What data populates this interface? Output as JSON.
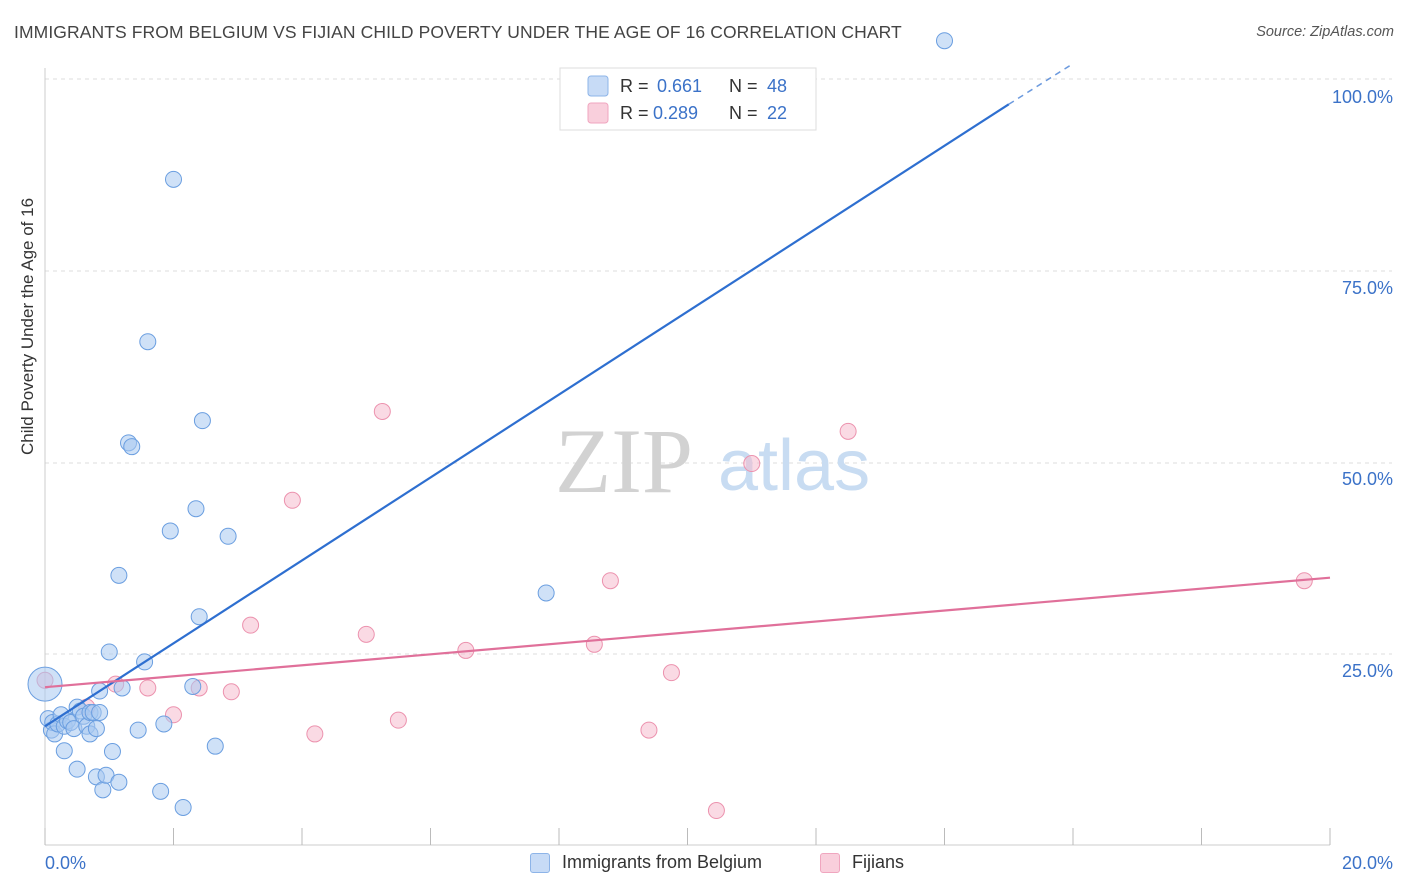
{
  "title": "IMMIGRANTS FROM BELGIUM VS FIJIAN CHILD POVERTY UNDER THE AGE OF 16 CORRELATION CHART",
  "source": "Source: ZipAtlas.com",
  "watermark": {
    "zip": "ZIP",
    "atlas": "atlas"
  },
  "colors": {
    "blue_fill": "#a8c8f0",
    "blue_stroke": "#6a9ee0",
    "blue_line": "#2e6fd0",
    "pink_fill": "#f6bccd",
    "pink_stroke": "#ec92ae",
    "pink_line": "#e0709a",
    "axis_label": "#3b72c8",
    "grid": "#dddddd"
  },
  "legend": {
    "r_label": "R =",
    "n_label": "N =",
    "rows": [
      {
        "r": "0.661",
        "n": "48",
        "series": "blue"
      },
      {
        "r": "0.289",
        "n": "22",
        "series": "pink"
      }
    ]
  },
  "chart_data": {
    "type": "scatter",
    "title": "IMMIGRANTS FROM BELGIUM VS FIJIAN CHILD POVERTY UNDER THE AGE OF 16 CORRELATION CHART",
    "xlabel": "",
    "ylabel": "Child Poverty Under the Age of 16",
    "xlim": [
      0,
      20
    ],
    "ylim": [
      0,
      100
    ],
    "x_tick_labels": [
      "0.0%",
      "20.0%"
    ],
    "y_tick_labels": [
      "100.0%",
      "75.0%",
      "50.0%",
      "25.0%"
    ],
    "y_ticks": [
      100,
      75,
      50,
      25
    ],
    "series": [
      {
        "name": "Immigrants from Belgium",
        "color": "blue",
        "r": 0.661,
        "n": 48,
        "trend": {
          "x": [
            0,
            15.0
          ],
          "y": [
            15.5,
            96.7
          ],
          "dash_to": [
            16.0,
            102.0
          ]
        },
        "points": [
          [
            0.05,
            16.5
          ],
          [
            0.1,
            15.0
          ],
          [
            0.12,
            16.0
          ],
          [
            0.15,
            14.5
          ],
          [
            0.2,
            15.8
          ],
          [
            0.25,
            17.0
          ],
          [
            0.3,
            15.5
          ],
          [
            0.3,
            12.3
          ],
          [
            0.35,
            16.2
          ],
          [
            0.4,
            16.0
          ],
          [
            0.45,
            15.2
          ],
          [
            0.5,
            18.0
          ],
          [
            0.5,
            9.9
          ],
          [
            0.55,
            17.5
          ],
          [
            0.6,
            16.8
          ],
          [
            0.65,
            15.5
          ],
          [
            0.7,
            17.3
          ],
          [
            0.7,
            14.5
          ],
          [
            0.75,
            17.3
          ],
          [
            0.8,
            15.2
          ],
          [
            0.8,
            8.9
          ],
          [
            0.85,
            17.3
          ],
          [
            0.85,
            20.1
          ],
          [
            0.9,
            7.2
          ],
          [
            0.95,
            9.1
          ],
          [
            1.0,
            25.2
          ],
          [
            1.05,
            12.2
          ],
          [
            1.15,
            8.2
          ],
          [
            1.15,
            35.2
          ],
          [
            1.2,
            20.5
          ],
          [
            1.3,
            52.5
          ],
          [
            1.35,
            52.0
          ],
          [
            1.45,
            15.0
          ],
          [
            1.55,
            23.9
          ],
          [
            1.6,
            65.7
          ],
          [
            1.8,
            7.0
          ],
          [
            1.85,
            15.8
          ],
          [
            1.95,
            41.0
          ],
          [
            2.0,
            86.9
          ],
          [
            2.15,
            4.9
          ],
          [
            2.3,
            20.7
          ],
          [
            2.35,
            43.9
          ],
          [
            2.4,
            29.8
          ],
          [
            2.45,
            55.4
          ],
          [
            2.65,
            12.9
          ],
          [
            2.85,
            40.3
          ],
          [
            7.8,
            32.9
          ],
          [
            14.0,
            105.0
          ]
        ],
        "big_point": [
          0.0,
          21.0
        ]
      },
      {
        "name": "Fijians",
        "color": "pink",
        "r": 0.289,
        "n": 22,
        "trend": {
          "x": [
            0,
            20
          ],
          "y": [
            20.6,
            34.9
          ]
        },
        "points": [
          [
            0.0,
            21.5
          ],
          [
            0.65,
            18.0
          ],
          [
            1.1,
            21.0
          ],
          [
            1.6,
            20.5
          ],
          [
            2.0,
            17.0
          ],
          [
            2.4,
            20.5
          ],
          [
            2.9,
            20.0
          ],
          [
            3.2,
            28.7
          ],
          [
            3.85,
            45.0
          ],
          [
            4.2,
            14.5
          ],
          [
            5.0,
            27.5
          ],
          [
            5.25,
            56.6
          ],
          [
            5.5,
            16.3
          ],
          [
            6.55,
            25.4
          ],
          [
            8.55,
            26.2
          ],
          [
            8.8,
            34.5
          ],
          [
            9.4,
            15.0
          ],
          [
            9.75,
            22.5
          ],
          [
            10.45,
            4.5
          ],
          [
            11.0,
            49.8
          ],
          [
            12.5,
            54.0
          ],
          [
            19.6,
            34.5
          ]
        ]
      }
    ]
  }
}
